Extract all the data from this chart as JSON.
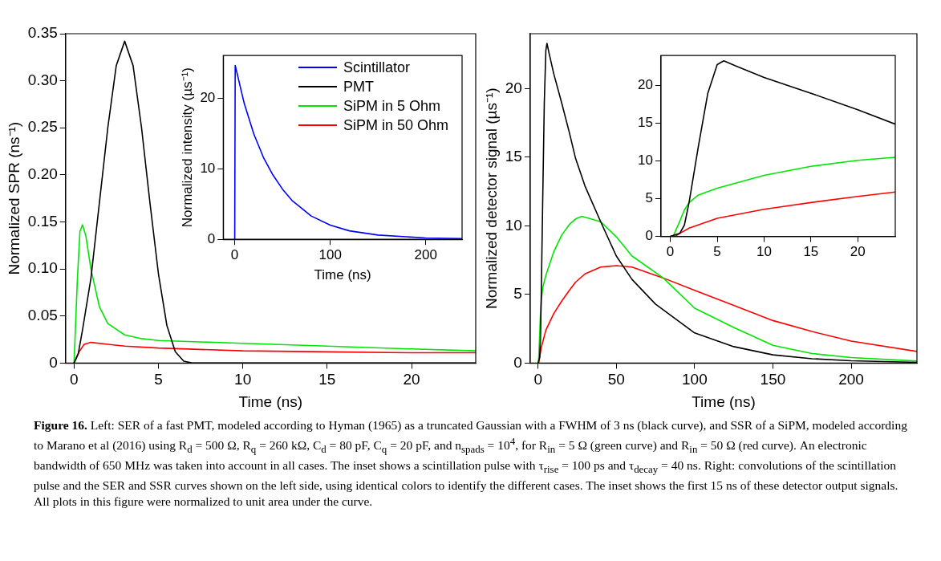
{
  "chart_data": [
    {
      "type": "line",
      "xlabel": "Time (ns)",
      "ylabel": "Normalized SPR (ns⁻¹)",
      "xlim": [
        -0.5,
        23.8
      ],
      "ylim": [
        0,
        0.35
      ],
      "xticks": [
        0,
        5,
        10,
        15,
        20
      ],
      "yticks": [
        0,
        0.05,
        {
          "value": 0.1,
          "label": "0.10"
        },
        0.15,
        {
          "value": 0.2,
          "label": "0.20"
        },
        0.25,
        {
          "value": 0.3,
          "label": "0.30"
        },
        0.35
      ],
      "grid": false,
      "legend": "top right",
      "x": [
        0,
        0.25,
        0.5,
        1,
        1.5,
        2,
        2.5,
        3,
        3.5,
        4,
        4.5,
        5,
        5.5,
        6,
        6.5,
        7,
        23.8
      ],
      "series": [
        {
          "name": "PMT",
          "color": "#000000",
          "values": [
            0,
            0.01,
            0.035,
            0.09,
            0.17,
            0.25,
            0.316,
            0.342,
            0.316,
            0.25,
            0.17,
            0.095,
            0.04,
            0.012,
            0.002,
            0,
            0
          ]
        },
        {
          "name": "SiPM in 5 Ohm",
          "color": "#00e600",
          "x": [
            0,
            0.2,
            0.35,
            0.5,
            0.7,
            1,
            1.5,
            2,
            3,
            4,
            5,
            10,
            15,
            20,
            23.8
          ],
          "values": [
            0,
            0.09,
            0.14,
            0.147,
            0.135,
            0.1,
            0.06,
            0.042,
            0.03,
            0.026,
            0.024,
            0.021,
            0.018,
            0.015,
            0.013
          ]
        },
        {
          "name": "SiPM in 50 Ohm",
          "color": "#ff0000",
          "x": [
            0,
            0.3,
            0.6,
            1,
            2,
            3,
            5,
            10,
            15,
            20,
            23.8
          ],
          "values": [
            0,
            0.012,
            0.02,
            0.022,
            0.02,
            0.018,
            0.016,
            0.013,
            0.012,
            0.011,
            0.011
          ]
        }
      ],
      "annotations": [
        "Figure 16.",
        "Left: SER of a fast PMT, modeled according to Hyman (1965) as a truncated Gaussian with a FWHM of 3 ns (black curve), and SSR of a SiPM, modeled according to Marano et al (2016) using R$_{d}$ = 500 Ω, R$_{q}$ = 260 kΩ, C$_{d}$ = 80 pF, C$_{q}$ = 20 pF, and n$_{spads}$ = 10$^{4}$, for R$_{in}$ = 5 Ω (green curve) and R$_{in}$ = 50 Ω (red curve). An electronic bandwidth of 650 MHz was taken into account in all cases. The inset shows a scintillation pulse with τ$_{rise}$ = 100 ps and τ$_{decay}$ = 40 ns. Right: convolutions of the scintillation pulse and the SER and SSR curves shown on the left side, using identical colors to identify the different cases. The inset shows the first 15 ns of these detector output signals. All plots in this figure were normalized to unit area under the curve."
      ]
    },
    {
      "type": "line",
      "xlabel": "Time (ns)",
      "ylabel": "Normalized intensity (µs⁻¹)",
      "xlim": [
        -12,
        238
      ],
      "ylim": [
        0,
        26
      ],
      "xticks": [
        0,
        100,
        200
      ],
      "yticks": [
        0,
        10,
        20
      ],
      "grid": false,
      "legend": "top right",
      "x": [
        0,
        0.5,
        10,
        20,
        30,
        40,
        50,
        60,
        80,
        100,
        120,
        150,
        200,
        238
      ],
      "series": [
        {
          "name": "Scintillator",
          "color": "#0000ff",
          "values": [
            0,
            24.6,
            19.2,
            14.9,
            11.6,
            9.1,
            7.1,
            5.5,
            3.3,
            2.0,
            1.2,
            0.6,
            0.2,
            0.1
          ]
        }
      ]
    },
    {
      "type": "line",
      "xlabel": "Time (ns)",
      "ylabel": "Normalized detector signal (µs⁻¹)",
      "xlim": [
        -5,
        242
      ],
      "ylim": [
        0,
        24
      ],
      "xticks": [
        0,
        50,
        100,
        150,
        200
      ],
      "yticks": [
        0,
        5,
        10,
        15,
        20
      ],
      "grid": false,
      "series": [
        {
          "color": "#000000",
          "x": [
            0,
            1,
            1.5,
            2,
            3,
            4,
            5,
            5.7,
            7,
            10,
            15,
            20,
            24,
            30,
            40,
            50,
            60,
            75,
            100,
            125,
            150,
            175,
            200,
            242
          ],
          "values": [
            0,
            0.4,
            1.5,
            4.5,
            12,
            19,
            22.8,
            23.3,
            22.6,
            21.1,
            19.0,
            16.8,
            14.9,
            12.9,
            10.3,
            7.8,
            6.1,
            4.3,
            2.2,
            1.2,
            0.6,
            0.32,
            0.17,
            0.05
          ]
        },
        {
          "color": "#00e600",
          "x": [
            0,
            0.3,
            1,
            1.5,
            2,
            3,
            5,
            10,
            15,
            20,
            24,
            28,
            40,
            50,
            60,
            80,
            100,
            125,
            150,
            175,
            200,
            242
          ],
          "values": [
            0,
            0,
            2,
            3.5,
            4.5,
            5.5,
            6.4,
            8.1,
            9.3,
            10.1,
            10.5,
            10.7,
            10.3,
            9.2,
            7.8,
            6.2,
            4.0,
            2.6,
            1.3,
            0.7,
            0.4,
            0.15
          ]
        },
        {
          "color": "#ff0000",
          "x": [
            0,
            0.5,
            1,
            2,
            5,
            10,
            15,
            20,
            24,
            30,
            40,
            50,
            60,
            80,
            100,
            125,
            150,
            175,
            200,
            242
          ],
          "values": [
            0,
            0,
            0.4,
            1.1,
            2.4,
            3.6,
            4.5,
            5.3,
            5.9,
            6.5,
            7.0,
            7.1,
            7.0,
            6.2,
            5.3,
            4.2,
            3.1,
            2.3,
            1.6,
            0.85
          ]
        }
      ]
    },
    {
      "type": "line",
      "xlim": [
        -1,
        24
      ],
      "ylim": [
        0,
        24
      ],
      "xticks": [
        0,
        5,
        10,
        15,
        20
      ],
      "yticks": [
        0,
        5,
        10,
        15,
        20
      ],
      "grid": false,
      "series": [
        {
          "color": "#000000",
          "x": [
            0,
            1,
            1.5,
            2,
            3,
            4,
            5,
            5.7,
            7,
            10,
            15,
            20,
            24
          ],
          "values": [
            0,
            0.4,
            1.5,
            4.5,
            12,
            19,
            22.8,
            23.3,
            22.6,
            21.1,
            19.0,
            16.8,
            14.9
          ]
        },
        {
          "color": "#00e600",
          "x": [
            0,
            0.3,
            1,
            1.5,
            2,
            3,
            5,
            10,
            15,
            20,
            24
          ],
          "values": [
            0,
            0,
            2,
            3.5,
            4.5,
            5.5,
            6.4,
            8.1,
            9.3,
            10.1,
            10.5
          ]
        },
        {
          "color": "#ff0000",
          "x": [
            0,
            0.5,
            1,
            2,
            5,
            10,
            15,
            20,
            24
          ],
          "values": [
            0,
            0,
            0.4,
            1.1,
            2.4,
            3.6,
            4.5,
            5.3,
            5.9
          ]
        }
      ]
    }
  ]
}
